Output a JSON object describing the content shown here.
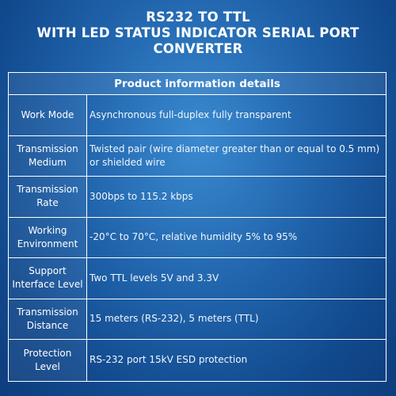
{
  "title": {
    "line1": "RS232 TO TTL",
    "line2": "WITH LED STATUS INDICATOR SERIAL PORT",
    "line3": "CONVERTER"
  },
  "table": {
    "header": "Product information details",
    "rows": [
      {
        "label": "Work Mode",
        "value": "Asynchronous full-duplex fully transparent"
      },
      {
        "label": "Transmission Medium",
        "value": "Twisted pair (wire diameter greater than or equal to 0.5 mm) or shielded wire"
      },
      {
        "label": "Transmission Rate",
        "value": "300bps to 115.2 kbps"
      },
      {
        "label": "Working Environment",
        "value": "-20°C to 70°C, relative humidity 5% to 95%"
      },
      {
        "label": "Support Interface Level",
        "value": "Two TTL levels 5V and 3.3V"
      },
      {
        "label": "Transmission Distance",
        "value": "15 meters (RS-232), 5 meters (TTL)"
      },
      {
        "label": "Protection Level",
        "value": "RS-232 port 15kV ESD protection"
      }
    ]
  }
}
